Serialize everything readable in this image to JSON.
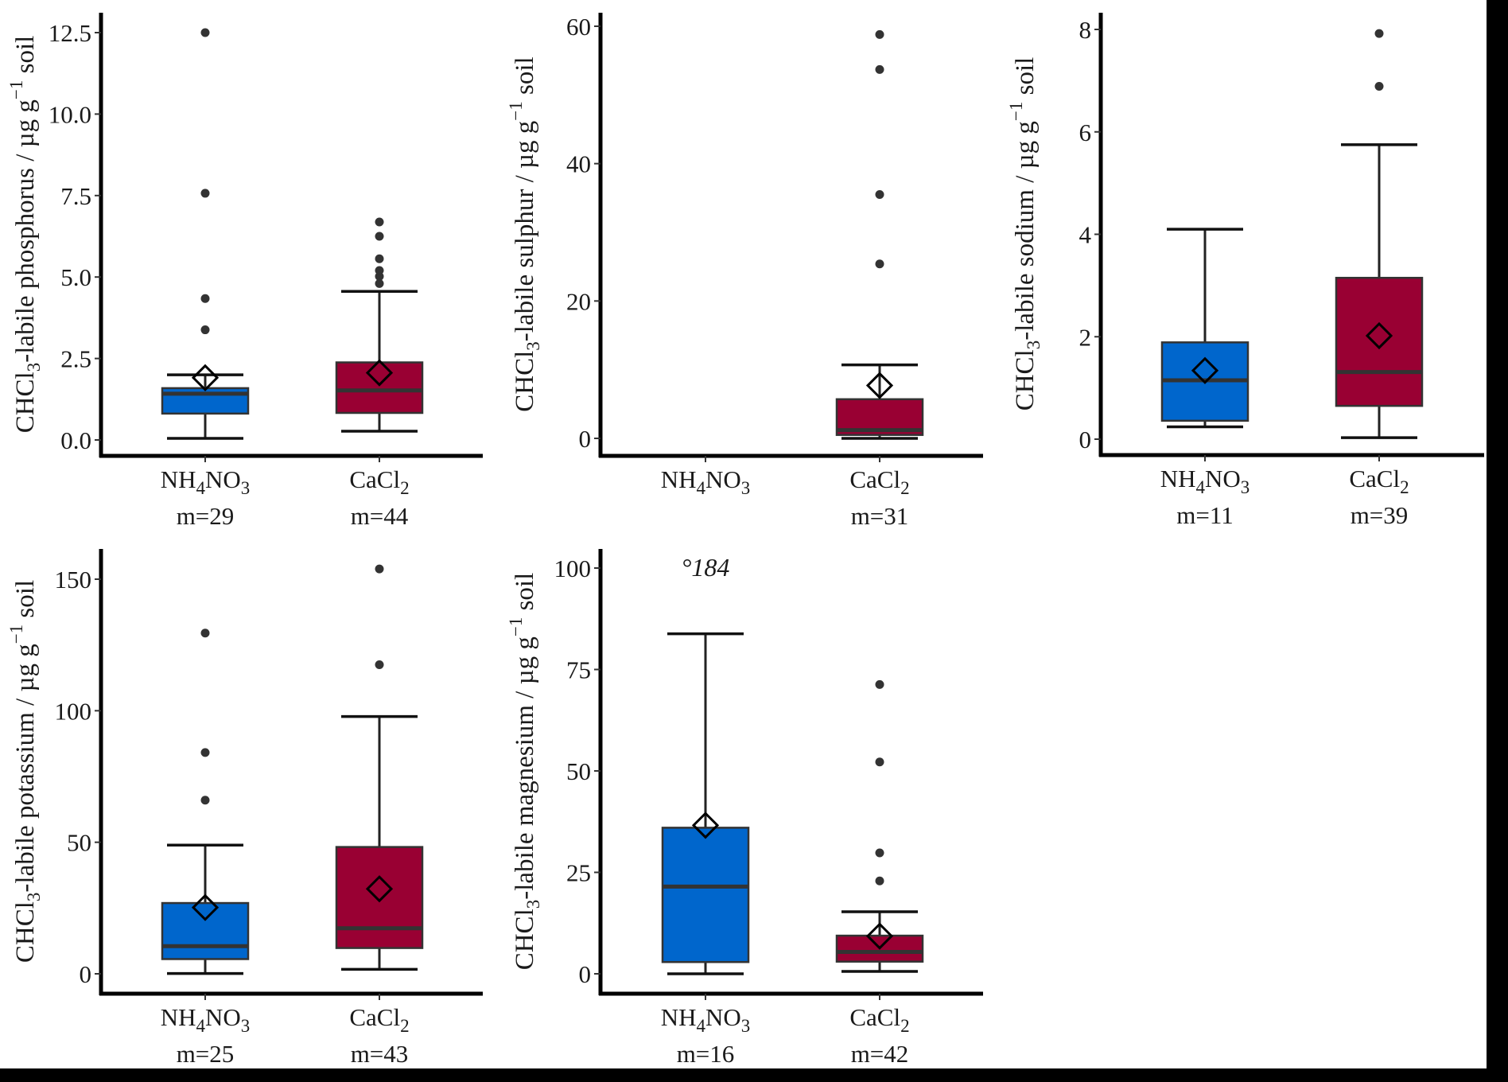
{
  "colors": {
    "NH4NO3": "#0066CC",
    "CaCl2": "#990033",
    "outline": "#333333",
    "outlier": "#333333",
    "axis": "#000000"
  },
  "chart_data": [
    {
      "type": "box",
      "ylabel": "CHCl3-labile phosphorus / µg g-1 soil",
      "ylabel_parts": {
        "pre": "CHCl",
        "sub": "3",
        "mid": "-labile phosphorus / µg  g",
        "sup": "−1",
        "post": "  soil"
      },
      "ylim": [
        -0.5,
        13.5
      ],
      "yticks": [
        0.0,
        2.5,
        5.0,
        7.5,
        10.0,
        12.5
      ],
      "ytick_labels": [
        "0.0",
        "2.5",
        "5.0",
        "7.5",
        "10.0",
        "12.5"
      ],
      "categories": [
        {
          "label_main": "NH",
          "label_sub1": "4",
          "label_mid": "NO",
          "label_sub2": "3",
          "n_label": "m=29"
        },
        {
          "label_main": "CaCl",
          "label_sub1": "2",
          "label_mid": "",
          "label_sub2": "",
          "n_label": "m=44"
        }
      ],
      "series": [
        {
          "name": "NH4NO3",
          "whisker_low": 0.05,
          "q1": 0.81,
          "median": 1.42,
          "q3": 1.59,
          "whisker_high": 2.0,
          "mean": 1.91,
          "outliers": [
            3.38,
            4.34,
            7.57,
            12.5
          ]
        },
        {
          "name": "CaCl2",
          "whisker_low": 0.27,
          "q1": 0.83,
          "median": 1.52,
          "q3": 2.38,
          "whisker_high": 4.56,
          "mean": 2.06,
          "outliers": [
            4.8,
            5.02,
            5.2,
            5.56,
            6.25,
            6.69
          ]
        }
      ]
    },
    {
      "type": "box",
      "ylabel": "CHCl3-labile sulphur / µg g-1 soil",
      "ylabel_parts": {
        "pre": "CHCl",
        "sub": "3",
        "mid": "-labile sulphur / µg  g",
        "sup": "−1",
        "post": "  soil"
      },
      "ylim": [
        -3,
        63
      ],
      "yticks": [
        0,
        20,
        40,
        60
      ],
      "ytick_labels": [
        "0",
        "20",
        "40",
        "60"
      ],
      "categories": [
        {
          "label_main": "NH",
          "label_sub1": "4",
          "label_mid": "NO",
          "label_sub2": "3",
          "n_label": ""
        },
        {
          "label_main": "CaCl",
          "label_sub1": "2",
          "label_mid": "",
          "label_sub2": "",
          "n_label": "m=31"
        }
      ],
      "series": [
        null,
        {
          "name": "CaCl2",
          "whisker_low": 0.0,
          "q1": 0.5,
          "median": 1.2,
          "q3": 5.7,
          "whisker_high": 10.7,
          "mean": 7.7,
          "outliers": [
            25.4,
            35.5,
            53.7,
            58.8
          ]
        }
      ]
    },
    {
      "type": "box",
      "ylabel": "CHCl3-labile sodium / µg g-1 soil",
      "ylabel_parts": {
        "pre": "CHCl",
        "sub": "3",
        "mid": "-labile sodium / µg  g",
        "sup": "−1",
        "post": "  soil"
      },
      "ylim": [
        -0.4,
        8.4
      ],
      "yticks": [
        0,
        2,
        4,
        6,
        8
      ],
      "ytick_labels": [
        "0",
        "2",
        "4",
        "6",
        "8"
      ],
      "categories": [
        {
          "label_main": "NH",
          "label_sub1": "4",
          "label_mid": "NO",
          "label_sub2": "3",
          "n_label": "m=11"
        },
        {
          "label_main": "CaCl",
          "label_sub1": "2",
          "label_mid": "",
          "label_sub2": "",
          "n_label": "m=39"
        }
      ],
      "series": [
        {
          "name": "NH4NO3",
          "whisker_low": 0.24,
          "q1": 0.36,
          "median": 1.15,
          "q3": 1.89,
          "whisker_high": 4.1,
          "mean": 1.34,
          "outliers": []
        },
        {
          "name": "CaCl2",
          "whisker_low": 0.03,
          "q1": 0.65,
          "median": 1.31,
          "q3": 3.15,
          "whisker_high": 5.75,
          "mean": 2.02,
          "outliers": [
            6.89,
            7.92
          ]
        }
      ]
    },
    {
      "type": "box",
      "ylabel": "CHCl3-labile potassium / µg g-1 soil",
      "ylabel_parts": {
        "pre": "CHCl",
        "sub": "3",
        "mid": "-labile potassium / µg  g",
        "sup": "−1",
        "post": "  soil"
      },
      "ylim": [
        -7.5,
        161
      ],
      "yticks": [
        0,
        50,
        100,
        150
      ],
      "ytick_labels": [
        "0",
        "50",
        "100",
        "150"
      ],
      "categories": [
        {
          "label_main": "NH",
          "label_sub1": "4",
          "label_mid": "NO",
          "label_sub2": "3",
          "n_label": "m=25"
        },
        {
          "label_main": "CaCl",
          "label_sub1": "2",
          "label_mid": "",
          "label_sub2": "",
          "n_label": "m=43"
        }
      ],
      "series": [
        {
          "name": "NH4NO3",
          "whisker_low": 0.1,
          "q1": 5.6,
          "median": 10.5,
          "q3": 26.9,
          "whisker_high": 48.9,
          "mean": 25.2,
          "outliers": [
            66.0,
            84.1,
            129.5
          ]
        },
        {
          "name": "CaCl2",
          "whisker_low": 1.7,
          "q1": 9.8,
          "median": 17.3,
          "q3": 48.2,
          "whisker_high": 97.8,
          "mean": 32.3,
          "outliers": [
            117.5,
            153.9
          ]
        }
      ]
    },
    {
      "type": "box",
      "ylabel": "CHCl3-labile magnesium / µg g-1 soil",
      "ylabel_parts": {
        "pre": "CHCl",
        "sub": "3",
        "mid": "-labile magnesium / µg  g",
        "sup": "−1",
        "post": "  soil"
      },
      "ylim": [
        -5,
        105
      ],
      "yticks": [
        0,
        25,
        50,
        75,
        100
      ],
      "ytick_labels": [
        "0",
        "25",
        "50",
        "75",
        "100"
      ],
      "annotation": {
        "text": "°184",
        "category": 0
      },
      "categories": [
        {
          "label_main": "NH",
          "label_sub1": "4",
          "label_mid": "NO",
          "label_sub2": "3",
          "n_label": "m=16"
        },
        {
          "label_main": "CaCl",
          "label_sub1": "2",
          "label_mid": "",
          "label_sub2": "",
          "n_label": "m=42"
        }
      ],
      "series": [
        {
          "name": "NH4NO3",
          "whisker_low": 0.0,
          "q1": 2.9,
          "median": 21.5,
          "q3": 36.0,
          "whisker_high": 83.8,
          "mean": 36.6,
          "outliers": []
        },
        {
          "name": "CaCl2",
          "whisker_low": 0.6,
          "q1": 3.0,
          "median": 5.4,
          "q3": 9.4,
          "whisker_high": 15.3,
          "mean": 9.3,
          "outliers": [
            22.9,
            29.8,
            52.2,
            71.3
          ]
        }
      ]
    }
  ]
}
